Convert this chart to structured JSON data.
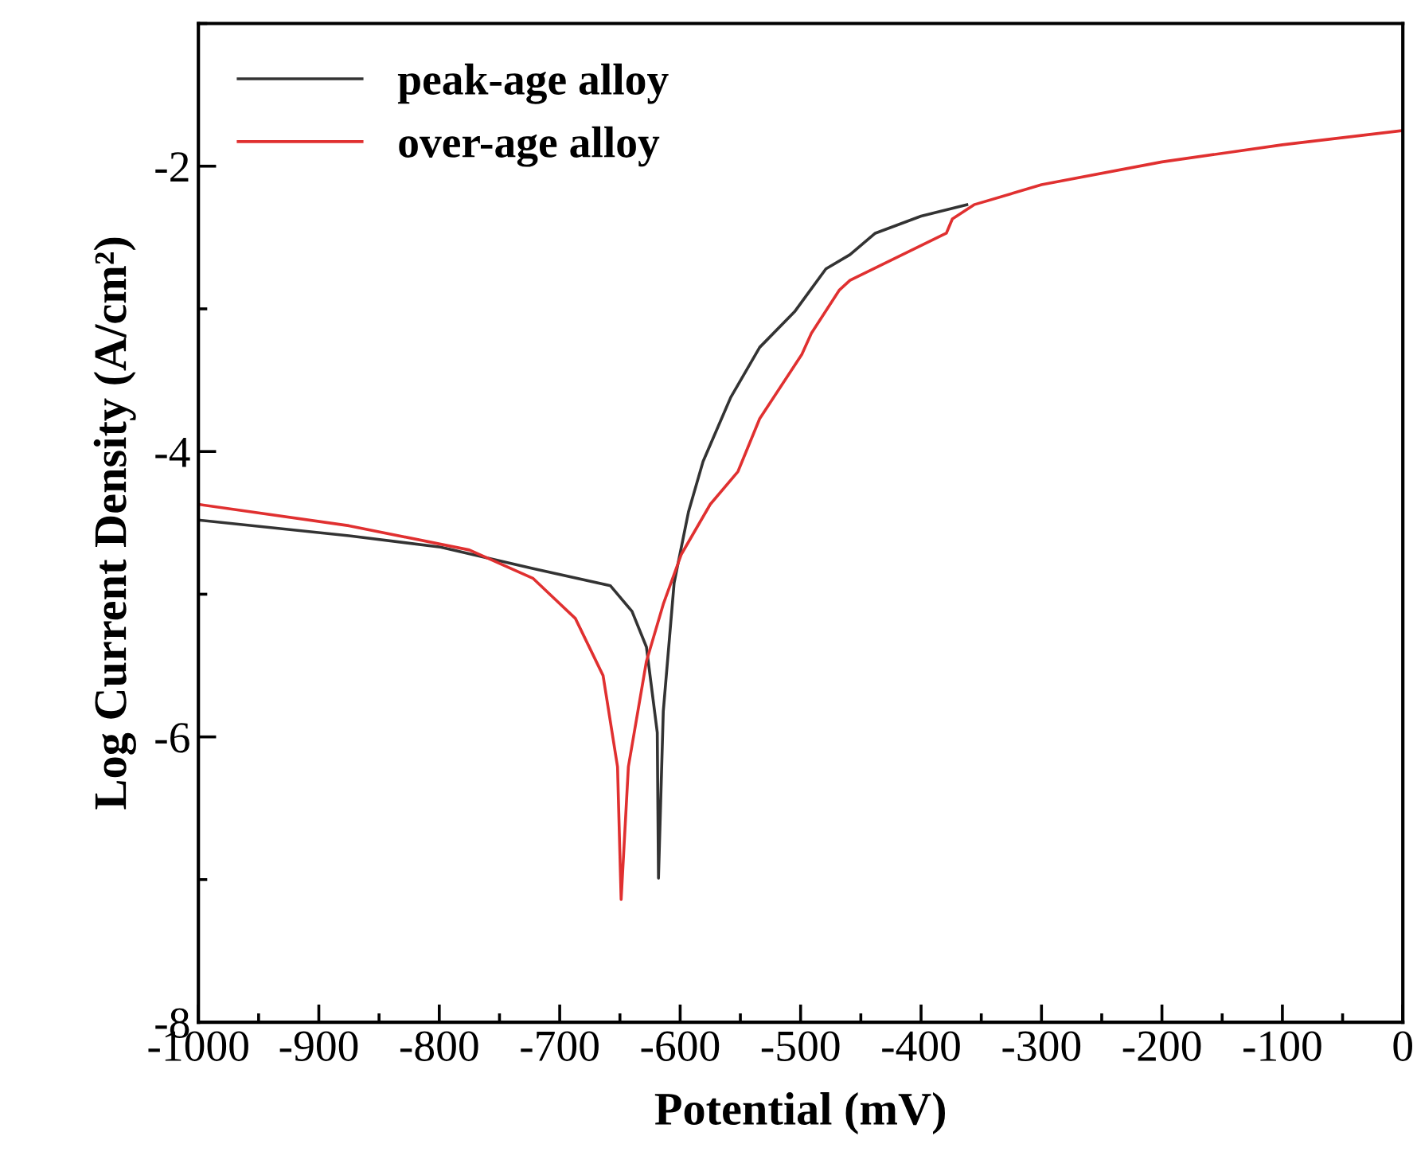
{
  "chart_data": {
    "type": "line",
    "xlabel": "Potential (mV)",
    "ylabel": "Log Current Density (A/cm²)",
    "xlim": [
      -1000,
      0
    ],
    "ylim": [
      -8,
      -1
    ],
    "xticks": [
      -1000,
      -900,
      -800,
      -700,
      -600,
      -500,
      -400,
      -300,
      -200,
      -100,
      0
    ],
    "yticks": [
      -8,
      -6,
      -4,
      -2
    ],
    "grid": false,
    "legend": "top left",
    "line_style": "solid",
    "marker": "none",
    "series": [
      {
        "name": "peak-age alloy",
        "color": "#333333",
        "x": [
          -1000,
          -875,
          -799,
          -722,
          -658,
          -640,
          -628,
          -619,
          -618,
          -614,
          -605,
          -593,
          -581,
          -558,
          -534,
          -505,
          -479,
          -459,
          -438,
          -400,
          -362
        ],
        "values": [
          -4.48,
          -4.59,
          -4.67,
          -4.82,
          -4.94,
          -5.12,
          -5.37,
          -5.97,
          -6.99,
          -5.82,
          -4.92,
          -4.42,
          -4.07,
          -3.62,
          -3.27,
          -3.02,
          -2.72,
          -2.62,
          -2.47,
          -2.35,
          -2.27
        ]
      },
      {
        "name": "over-age alloy",
        "color": "#e03030",
        "x": [
          -1000,
          -875,
          -775,
          -722,
          -687,
          -664,
          -652,
          -649,
          -643,
          -628,
          -614,
          -599,
          -575,
          -552,
          -534,
          -499,
          -491,
          -468,
          -459,
          -379,
          -374,
          -356,
          -300,
          -200,
          -100,
          0
        ],
        "values": [
          -4.37,
          -4.52,
          -4.69,
          -4.89,
          -5.17,
          -5.57,
          -6.21,
          -7.14,
          -6.21,
          -5.47,
          -5.07,
          -4.72,
          -4.37,
          -4.14,
          -3.77,
          -3.32,
          -3.17,
          -2.87,
          -2.8,
          -2.47,
          -2.37,
          -2.27,
          -2.13,
          -1.97,
          -1.85,
          -1.75
        ]
      }
    ]
  }
}
